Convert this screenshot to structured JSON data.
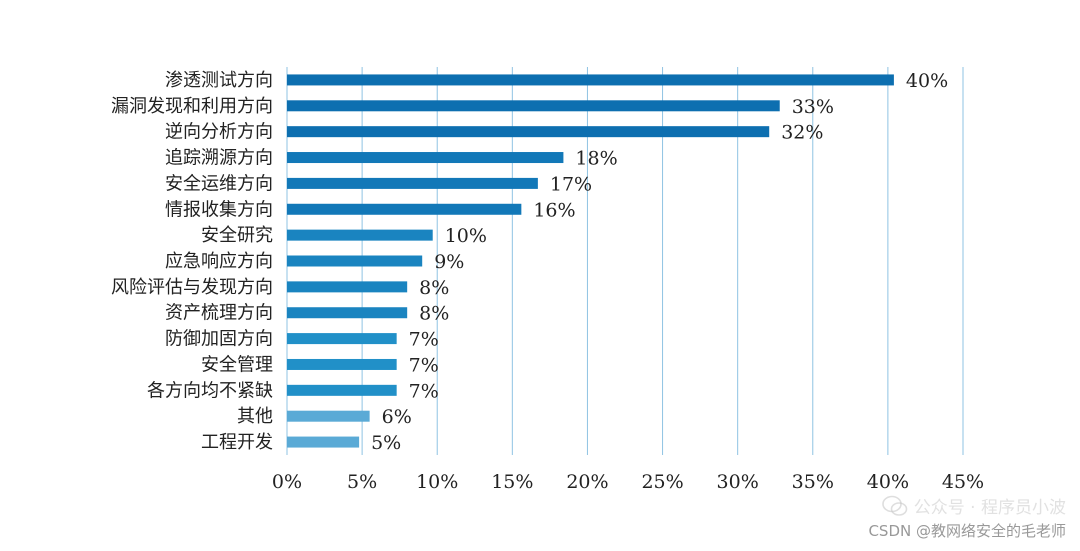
{
  "chart_data": {
    "type": "bar",
    "orientation": "horizontal",
    "categories": [
      "渗透测试方向",
      "漏洞发现和利用方向",
      "逆向分析方向",
      "追踪溯源方向",
      "安全运维方向",
      "情报收集方向",
      "安全研究",
      "应急响应方向",
      "风险评估与发现方向",
      "资产梳理方向",
      "防御加固方向",
      "安全管理",
      "各方向均不紧缺",
      "其他",
      "工程开发"
    ],
    "values": [
      40.4,
      32.8,
      32.1,
      18.4,
      16.7,
      15.6,
      9.7,
      9.0,
      8.0,
      8.0,
      7.3,
      7.3,
      7.3,
      5.5,
      4.8
    ],
    "value_labels": [
      "40%",
      "33%",
      "32%",
      "18%",
      "17%",
      "16%",
      "10%",
      "9%",
      "8%",
      "8%",
      "7%",
      "7%",
      "7%",
      "6%",
      "5%"
    ],
    "bar_colors": [
      "#0d6fb0",
      "#0d6fb0",
      "#0d6fb0",
      "#1278b8",
      "#1278b8",
      "#1278b8",
      "#1a84c0",
      "#1a84c0",
      "#1a84c0",
      "#1a84c0",
      "#2190c8",
      "#2190c8",
      "#2190c8",
      "#5aaad6",
      "#5aaad6"
    ],
    "xlim": [
      0,
      45
    ],
    "xticks": [
      0,
      5,
      10,
      15,
      20,
      25,
      30,
      35,
      40,
      45
    ],
    "xtick_labels": [
      "0%",
      "5%",
      "10%",
      "15%",
      "20%",
      "25%",
      "30%",
      "35%",
      "40%",
      "45%"
    ],
    "grid": true,
    "grid_color": "#8fc3e3",
    "title": "",
    "xlabel": "",
    "ylabel": ""
  },
  "watermark": {
    "line1": "公众号 · 程序员小波",
    "line2": "CSDN @教网络安全的毛老师"
  }
}
